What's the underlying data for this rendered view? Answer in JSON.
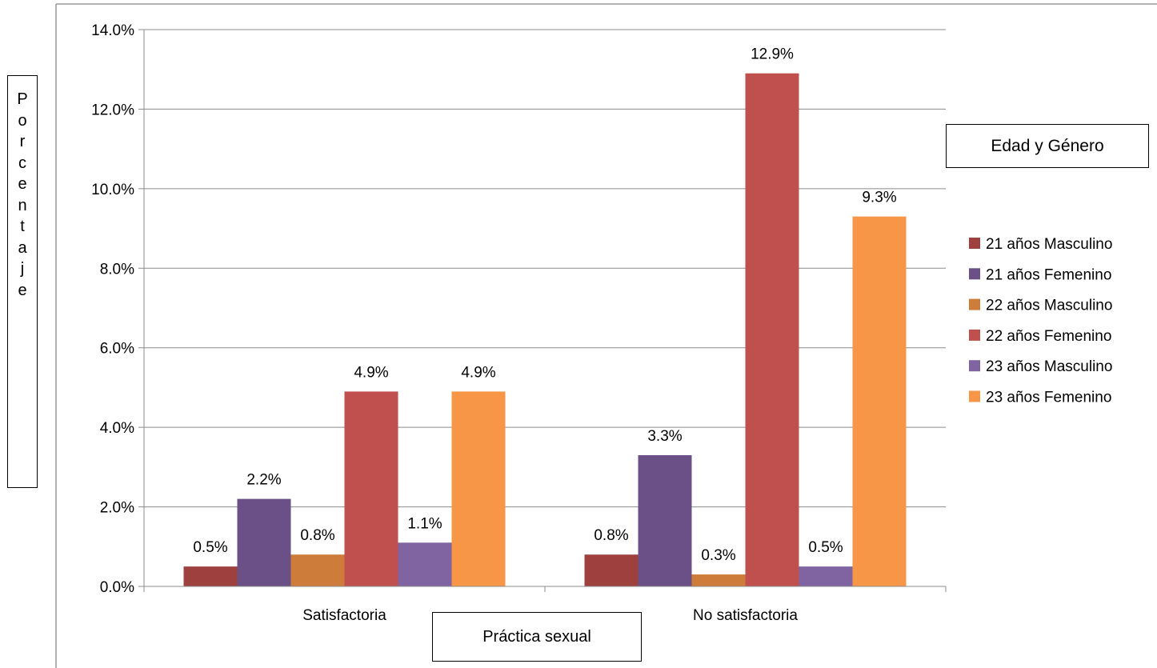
{
  "chart_data": {
    "type": "bar",
    "categories": [
      "Satisfactoria",
      "No satisfactoria"
    ],
    "series": [
      {
        "name": "21 años Masculino",
        "values": [
          0.5,
          0.8
        ],
        "labels": [
          "0.5%",
          "0.8%"
        ],
        "color": "#9E413E"
      },
      {
        "name": "21 años Femenino",
        "values": [
          2.2,
          3.3
        ],
        "labels": [
          "2.2%",
          "3.3%"
        ],
        "color": "#6A5087"
      },
      {
        "name": "22 años Masculino",
        "values": [
          0.8,
          0.3
        ],
        "labels": [
          "0.8%",
          "0.3%"
        ],
        "color": "#CE7C3A"
      },
      {
        "name": "22 años Femenino",
        "values": [
          4.9,
          12.9
        ],
        "labels": [
          "4.9%",
          "12.9%"
        ],
        "color": "#C0504D"
      },
      {
        "name": "23 años Masculino",
        "values": [
          1.1,
          0.5
        ],
        "labels": [
          "1.1%",
          "0.5%"
        ],
        "color": "#8064A2"
      },
      {
        "name": "23 años Femenino",
        "values": [
          4.9,
          9.3
        ],
        "labels": [
          "4.9%",
          "9.3%"
        ],
        "color": "#F79646"
      }
    ],
    "ylim": [
      0,
      14
    ],
    "yticks": [
      0,
      2,
      4,
      6,
      8,
      10,
      12,
      14
    ],
    "ytick_labels": [
      "0.0%",
      "2.0%",
      "4.0%",
      "6.0%",
      "8.0%",
      "10.0%",
      "12.0%",
      "14.0%"
    ],
    "xlabel": "Práctica sexual",
    "ylabel": "Porcentaje",
    "legend_title": "Edad y Género",
    "legend_position": "right",
    "grid": true
  }
}
